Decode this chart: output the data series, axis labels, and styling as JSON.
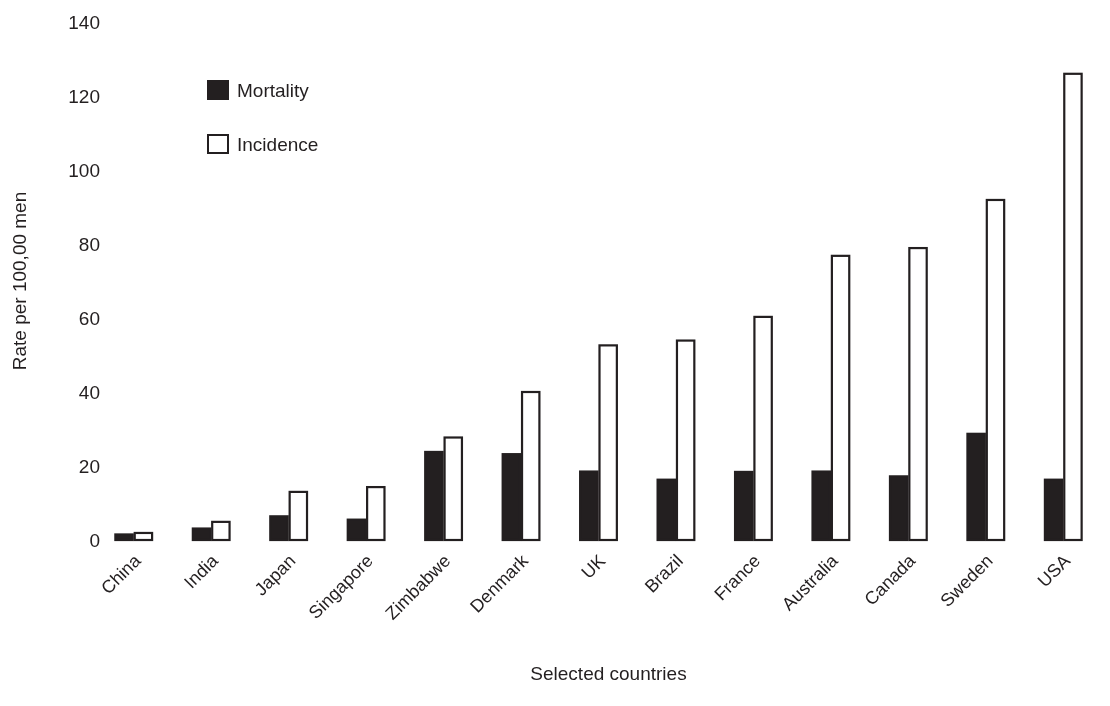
{
  "chart_data": {
    "type": "bar",
    "xlabel": "Selected countries",
    "ylabel": "Rate per 100,00 men",
    "categories": [
      "China",
      "India",
      "Japan",
      "Singapore",
      "Zimbabwe",
      "Denmark",
      "UK",
      "Brazil",
      "France",
      "Australia",
      "Canada",
      "Sweden",
      "USA"
    ],
    "series": [
      {
        "name": "Mortality",
        "color": "#231f20",
        "values": [
          1.5,
          3.1,
          6.4,
          5.5,
          23.8,
          23.2,
          18.5,
          16.3,
          18.4,
          18.5,
          17.2,
          28.7,
          16.3
        ]
      },
      {
        "name": "Incidence",
        "color": "#ffffff",
        "values": [
          1.9,
          4.9,
          13.0,
          14.3,
          27.7,
          40.0,
          52.6,
          53.9,
          60.3,
          76.8,
          78.9,
          91.9,
          126
        ]
      }
    ],
    "ylim": [
      0,
      140
    ],
    "yticks": [
      0,
      20,
      40,
      60,
      80,
      100,
      120,
      140
    ],
    "legend": "top left"
  }
}
